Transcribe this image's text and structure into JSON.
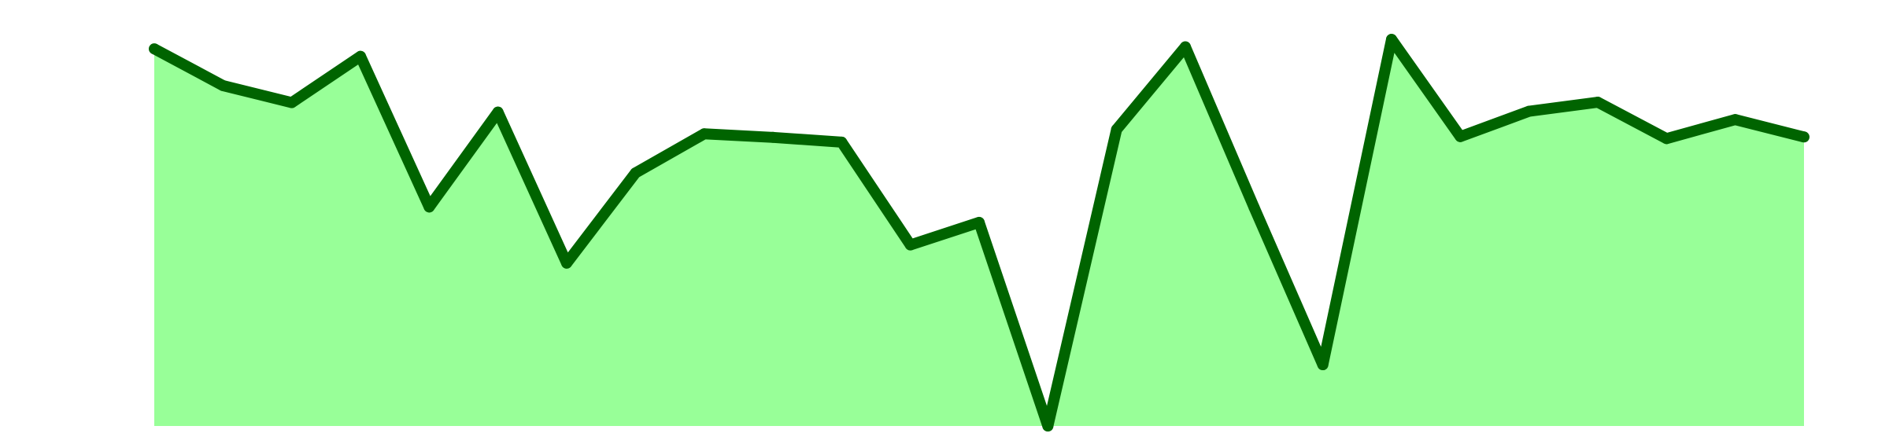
{
  "chart_data": {
    "type": "area",
    "x": [
      1,
      2,
      3,
      4,
      5,
      6,
      7,
      8,
      9,
      10,
      11,
      12,
      13,
      14,
      15,
      16,
      17,
      18,
      19,
      20,
      21,
      22,
      23,
      24,
      25
    ],
    "values": [
      95.4,
      86.1,
      81.8,
      93.5,
      55.4,
      79.4,
      41.2,
      64.0,
      73.9,
      73.0,
      71.8,
      45.8,
      51.5,
      0.0,
      75.0,
      95.9,
      55.3,
      15.5,
      97.8,
      73.2,
      79.6,
      81.9,
      72.7,
      77.5,
      73.1
    ],
    "ylim": [
      0,
      100
    ],
    "grid": false,
    "colors": {
      "line": "#006400",
      "fill": "#98FF98"
    }
  }
}
